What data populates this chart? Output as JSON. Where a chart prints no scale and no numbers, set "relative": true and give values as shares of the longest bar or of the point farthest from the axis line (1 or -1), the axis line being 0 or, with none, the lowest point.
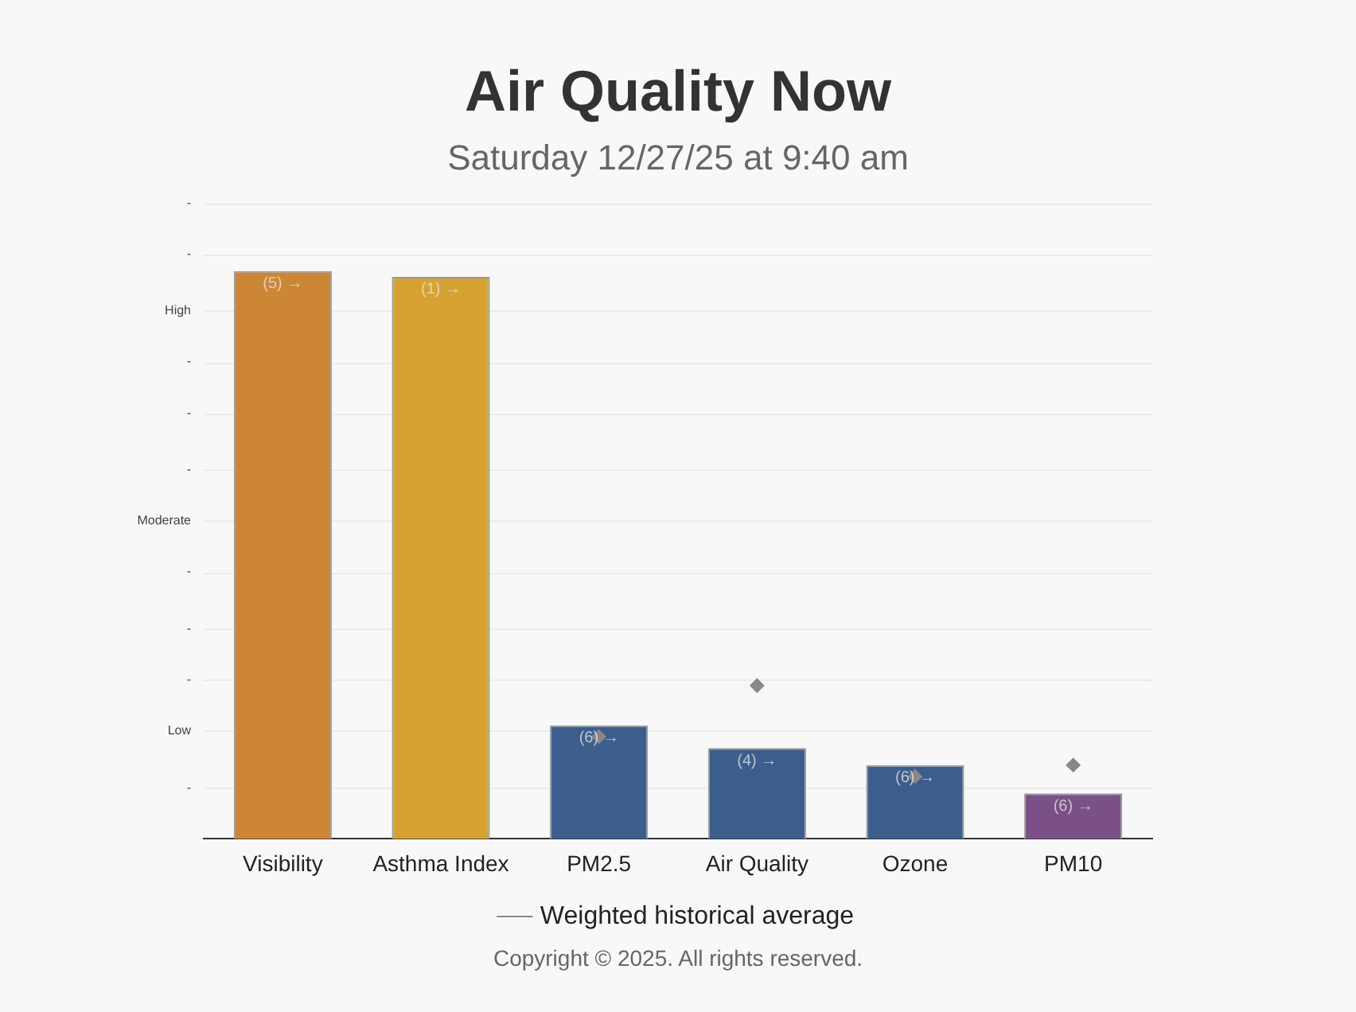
{
  "chart_data": {
    "type": "bar",
    "title": "Air Quality Now",
    "subtitle": "Saturday 12/27/25 at 9:40 am",
    "categories": [
      "Visibility",
      "Asthma Index",
      "PM2.5",
      "Air Quality",
      "Ozone",
      "PM10"
    ],
    "relative": true,
    "series": [
      {
        "type": "bar",
        "colors": [
          "#cc8636",
          "#d6a333",
          "#3d5e8c",
          "#3d5e8c",
          "#3d5e8c",
          "#7a5087"
        ],
        "values": [
          1,
          0.99,
          0.2,
          0.16,
          0.13,
          0.08
        ]
      },
      {
        "type": "scatter",
        "name": "Weighted historical average",
        "color": "#888888",
        "values": [
          null,
          null,
          0.18,
          0.27,
          0.11,
          0.13
        ]
      }
    ],
    "marker": "diamond",
    "grid": false,
    "legend": "bottom",
    "ref_lines": [
      {
        "axis": "y",
        "value": 0.09,
        "label": "-",
        "color": "#ececec"
      },
      {
        "axis": "y",
        "value": 0.19,
        "label": "Low",
        "color": "#ececec"
      },
      {
        "axis": "y",
        "value": 0.28,
        "label": "-",
        "color": "#ececec"
      },
      {
        "axis": "y",
        "value": 0.37,
        "label": "-",
        "color": "#ececec"
      },
      {
        "axis": "y",
        "value": 0.47,
        "label": "-",
        "color": "#ececec"
      },
      {
        "axis": "y",
        "value": 0.56,
        "label": "Moderate",
        "color": "#ececec"
      },
      {
        "axis": "y",
        "value": 0.65,
        "label": "-",
        "color": "#ececec"
      },
      {
        "axis": "y",
        "value": 0.75,
        "label": "-",
        "color": "#ececec"
      },
      {
        "axis": "y",
        "value": 0.84,
        "label": "-",
        "color": "#ececec"
      },
      {
        "axis": "y",
        "value": 0.93,
        "label": "High",
        "color": "#ececec"
      },
      {
        "axis": "y",
        "value": 1.03,
        "label": "-",
        "color": "#ececec"
      },
      {
        "axis": "y",
        "value": 1.12,
        "label": "-",
        "color": "#ececec"
      }
    ],
    "annotations": [
      {
        "text": "(5) →",
        "x": "Visibility",
        "y": 1
      },
      {
        "text": "(1) →",
        "x": "Asthma Index",
        "y": 0.99
      },
      {
        "text": "(6) →",
        "x": "PM2.5",
        "y": 0.2
      },
      {
        "text": "(4) →",
        "x": "Air Quality",
        "y": 0.16
      },
      {
        "text": "(6) →",
        "x": "Ozone",
        "y": 0.13
      },
      {
        "text": "(6) →",
        "x": "PM10",
        "y": 0.08
      },
      "Copyright © 2025. All rights reserved."
    ]
  }
}
